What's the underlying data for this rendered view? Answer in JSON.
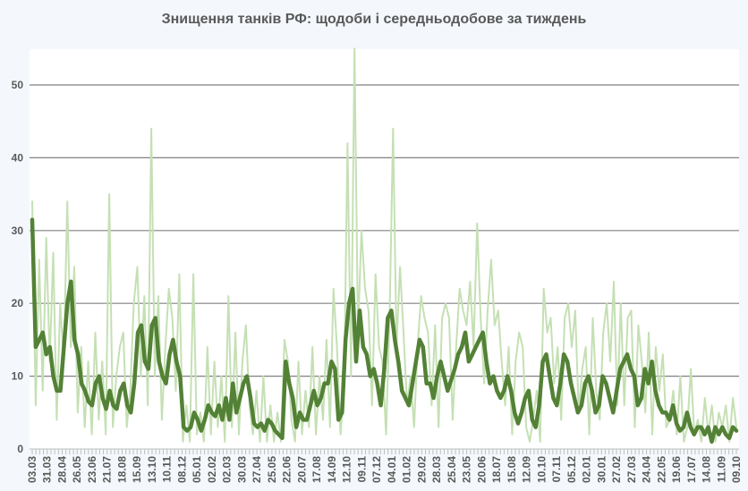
{
  "chart_data": {
    "type": "line",
    "title": "Знищення танків  РФ: щодоби і середньодобове за тиждень",
    "xlabel": "",
    "ylabel": "",
    "ylim": [
      0,
      55
    ],
    "yticks": [
      0,
      10,
      20,
      30,
      40,
      50
    ],
    "grid": true,
    "legend": "none",
    "x_tick_labels": [
      "03.03",
      "31.03",
      "28.04",
      "26.05",
      "23.06",
      "21.07",
      "18.08",
      "15.09",
      "13.10",
      "10.11",
      "08.12",
      "05.01",
      "02.02",
      "02.03",
      "30.03",
      "27.04",
      "25.05",
      "22.06",
      "20.07",
      "17.08",
      "14.09",
      "12.10",
      "09.11",
      "07.12",
      "04.01",
      "01.02",
      "29.02",
      "28.03",
      "25.04",
      "23.05",
      "20.06",
      "18.07",
      "15.08",
      "12.09",
      "10.10",
      "07.11",
      "05.12",
      "02.01",
      "30.01",
      "27.02",
      "27.03",
      "24.04",
      "22.05",
      "19.06",
      "17.07",
      "14.08",
      "11.09",
      "09.10"
    ],
    "series": [
      {
        "role": "daily",
        "color": "#c5e0b4",
        "values": [
          34,
          6,
          26,
          8,
          29,
          12,
          27,
          4,
          20,
          12,
          34,
          14,
          25,
          5,
          14,
          3,
          12,
          2,
          16,
          4,
          12,
          2,
          35,
          3,
          10,
          14,
          16,
          3,
          8,
          20,
          25,
          10,
          21,
          6,
          44,
          10,
          21,
          4,
          14,
          22,
          18,
          8,
          24,
          1,
          6,
          1,
          24,
          2,
          5,
          1,
          14,
          2,
          12,
          3,
          10,
          1,
          21,
          3,
          16,
          2,
          12,
          17,
          6,
          2,
          8,
          1,
          10,
          1,
          6,
          1,
          5,
          1,
          15,
          12,
          4,
          1,
          12,
          2,
          8,
          3,
          14,
          2,
          10,
          4,
          15,
          3,
          22,
          14,
          2,
          8,
          42,
          10,
          55,
          16,
          30,
          22,
          19,
          6,
          24,
          14,
          12,
          2,
          18,
          44,
          14,
          25,
          16,
          6,
          10,
          3,
          14,
          21,
          18,
          16,
          6,
          17,
          3,
          18,
          20,
          18,
          4,
          14,
          22,
          19,
          17,
          23,
          14,
          31,
          18,
          9,
          19,
          26,
          17,
          19,
          12,
          6,
          14,
          2,
          12,
          16,
          14,
          3,
          1,
          4,
          8,
          1,
          22,
          16,
          18,
          9,
          14,
          4,
          18,
          20,
          14,
          19,
          5,
          11,
          14,
          2,
          18,
          8,
          4,
          16,
          20,
          12,
          23,
          6,
          20,
          6,
          18,
          19,
          3,
          17,
          12,
          5,
          16,
          2,
          14,
          8,
          13,
          3,
          4,
          8,
          2,
          10,
          1,
          3,
          11,
          2,
          4,
          1,
          7,
          2,
          6,
          1,
          5,
          3,
          6,
          1,
          7,
          3
        ]
      },
      {
        "role": "weekly-average",
        "color": "#538135",
        "values": [
          31.5,
          14,
          15,
          16,
          13,
          14,
          10,
          8,
          8,
          14,
          20,
          23,
          15,
          13,
          9,
          8,
          6.5,
          6,
          9,
          10,
          7,
          5.5,
          8,
          6,
          5.5,
          8,
          9,
          6,
          5,
          9,
          16,
          17,
          12,
          11,
          17,
          18,
          12,
          10,
          9,
          13,
          15,
          12,
          10,
          3,
          2.5,
          3,
          5,
          4,
          2.5,
          4,
          6,
          5,
          4.5,
          6,
          4,
          7,
          4,
          9,
          5,
          7,
          9,
          10,
          7,
          3.5,
          3,
          3.5,
          2.5,
          4,
          3.5,
          2.5,
          2,
          1.5,
          12,
          9,
          7,
          3,
          5,
          4,
          4,
          6,
          8,
          6,
          7,
          9,
          9,
          12,
          11,
          4,
          5,
          15,
          20,
          22,
          12,
          19,
          14,
          13,
          10,
          11,
          9,
          6,
          11,
          18,
          19,
          15,
          12,
          8,
          7,
          6,
          9,
          12,
          15,
          14,
          9,
          9,
          7,
          10,
          12,
          10,
          8,
          9.5,
          11,
          13,
          14,
          16,
          12,
          13,
          14,
          15,
          16,
          12,
          9,
          10,
          8,
          7,
          8,
          10,
          8,
          5,
          3.5,
          5,
          7,
          8,
          4,
          3,
          6,
          12,
          13,
          10,
          7,
          6,
          9,
          13,
          12,
          9,
          7,
          5,
          6,
          9,
          10,
          8,
          5,
          6,
          10,
          9,
          7,
          5,
          8,
          11,
          12,
          13,
          11,
          10,
          6,
          7,
          11,
          9,
          12,
          8,
          6,
          5,
          5,
          4,
          6,
          3.5,
          2.5,
          3,
          5,
          3,
          2,
          3,
          3,
          2,
          3,
          1,
          3,
          2,
          3,
          2,
          1.5,
          3,
          2.5
        ]
      }
    ]
  }
}
